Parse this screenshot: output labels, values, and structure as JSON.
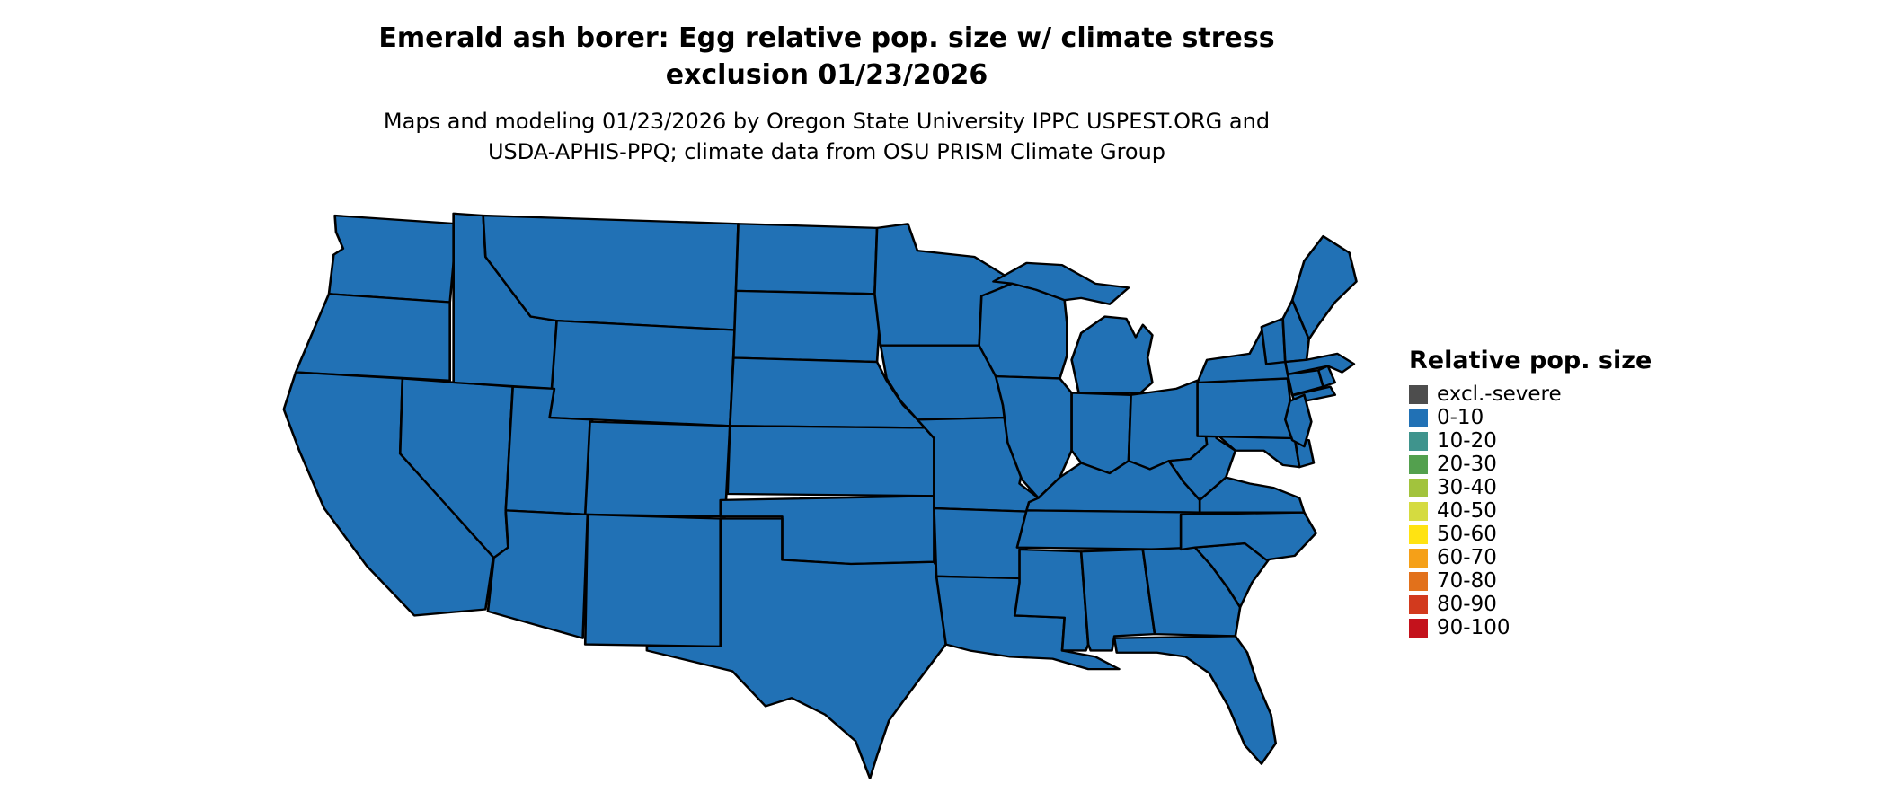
{
  "title": {
    "line1": "Emerald ash borer: Egg relative pop. size w/ climate stress",
    "line2": "exclusion 01/23/2026"
  },
  "subtitle": {
    "line1": "Maps and modeling 01/23/2026 by Oregon State University IPPC USPEST.ORG and",
    "line2": "USDA-APHIS-PPQ; climate data from OSU PRISM Climate Group"
  },
  "map": {
    "region": "Contiguous United States",
    "fill_color": "#2171B5",
    "border_color": "#000000",
    "displayed_class": "0-10",
    "note": "All states rendered in the 0-10 relative population size class"
  },
  "legend": {
    "title": "Relative pop. size",
    "items": [
      {
        "label": "excl.-severe",
        "color": "#4D4D4D"
      },
      {
        "label": "0-10",
        "color": "#2171B5"
      },
      {
        "label": "10-20",
        "color": "#3F948D"
      },
      {
        "label": "20-30",
        "color": "#53A04E"
      },
      {
        "label": "30-40",
        "color": "#A2C33D"
      },
      {
        "label": "40-50",
        "color": "#D5DB40"
      },
      {
        "label": "50-60",
        "color": "#FFE312"
      },
      {
        "label": "60-70",
        "color": "#F5A018"
      },
      {
        "label": "70-80",
        "color": "#E2711B"
      },
      {
        "label": "80-90",
        "color": "#D23A1E"
      },
      {
        "label": "90-100",
        "color": "#C4121C"
      }
    ]
  }
}
